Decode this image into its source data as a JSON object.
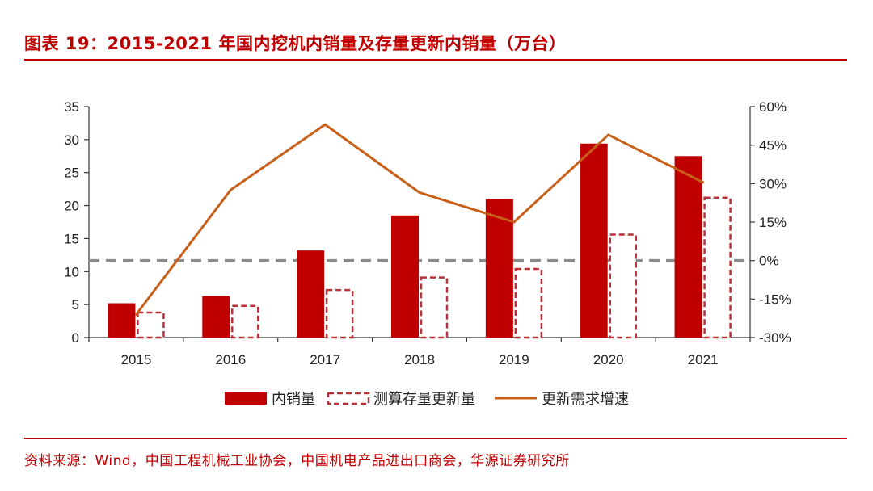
{
  "title": "图表 19：2015-2021 年国内挖机内销量及存量更新内销量（万台）",
  "source": "资料来源：Wind，中国工程机械工业协会，中国机电产品进出口商会，华源证券研究所",
  "chart_data": {
    "type": "bar",
    "categories": [
      "2015",
      "2016",
      "2017",
      "2018",
      "2019",
      "2020",
      "2021"
    ],
    "series": [
      {
        "name": "内销量",
        "kind": "bar",
        "axis": "left",
        "style": "solid",
        "color": "#c00000",
        "values": [
          5.2,
          6.3,
          13.2,
          18.5,
          21.0,
          29.4,
          27.5
        ]
      },
      {
        "name": "测算存量更新量",
        "kind": "bar",
        "axis": "left",
        "style": "dashed",
        "color": "#b8323a",
        "values": [
          3.8,
          4.8,
          7.2,
          9.1,
          10.4,
          15.6,
          21.2
        ]
      },
      {
        "name": "更新需求增速",
        "kind": "line",
        "axis": "right",
        "color": "#c8601a",
        "values": [
          -0.21,
          0.275,
          0.53,
          0.265,
          0.15,
          0.49,
          0.305
        ]
      }
    ],
    "y_left": {
      "min": 0,
      "max": 35,
      "step": 5,
      "ticks": [
        "0",
        "5",
        "10",
        "15",
        "20",
        "25",
        "30",
        "35"
      ]
    },
    "y_right": {
      "min": -0.3,
      "max": 0.6,
      "step": 0.15,
      "ticks": [
        "-30%",
        "-15%",
        "0%",
        "15%",
        "30%",
        "45%",
        "60%"
      ]
    },
    "reference_line": {
      "axis": "right",
      "value": 0,
      "style": "dashed",
      "color": "#8c8c8c"
    },
    "legend": {
      "position": "bottom",
      "items": [
        "内销量",
        "测算存量更新量",
        "更新需求增速"
      ]
    }
  }
}
